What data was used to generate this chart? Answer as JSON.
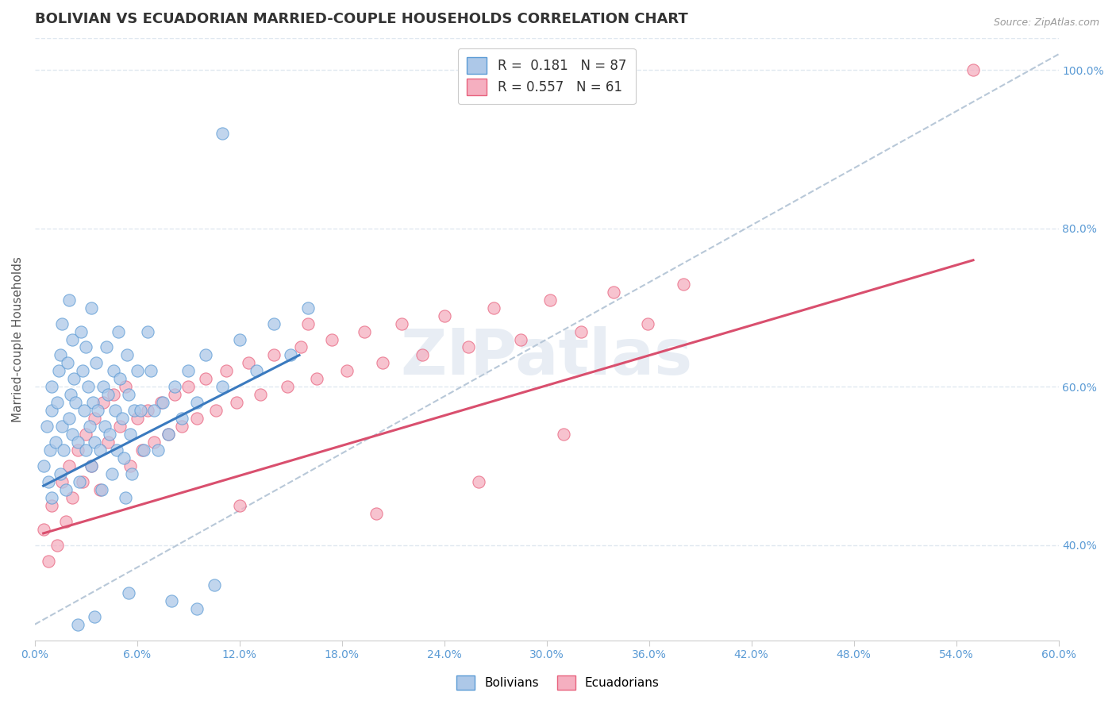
{
  "title": "BOLIVIAN VS ECUADORIAN MARRIED-COUPLE HOUSEHOLDS CORRELATION CHART",
  "source": "Source: ZipAtlas.com",
  "ylabel": "Married-couple Households",
  "xlim": [
    0.0,
    0.6
  ],
  "ylim": [
    0.28,
    1.04
  ],
  "xtick_vals": [
    0.0,
    0.06,
    0.12,
    0.18,
    0.24,
    0.3,
    0.36,
    0.42,
    0.48,
    0.54,
    0.6
  ],
  "yticks_right": [
    0.4,
    0.6,
    0.8,
    1.0
  ],
  "bolivian_R": 0.181,
  "bolivian_N": 87,
  "ecuadorian_R": 0.557,
  "ecuadorian_N": 61,
  "bolivian_fill": "#adc8e8",
  "ecuadorian_fill": "#f5afc0",
  "bolivian_edge": "#5b9bd5",
  "ecuadorian_edge": "#e8637e",
  "bolivian_line": "#3a7abf",
  "ecuadorian_line": "#d94f6e",
  "ref_line_color": "#b8c8d8",
  "watermark": "ZIPatlas",
  "background_color": "#ffffff",
  "grid_color": "#e0e8f0",
  "tick_label_color": "#5b9bd5",
  "bolivian_scatter_x": [
    0.005,
    0.007,
    0.008,
    0.009,
    0.01,
    0.01,
    0.01,
    0.012,
    0.013,
    0.014,
    0.015,
    0.015,
    0.016,
    0.016,
    0.017,
    0.018,
    0.019,
    0.02,
    0.02,
    0.021,
    0.022,
    0.022,
    0.023,
    0.024,
    0.025,
    0.026,
    0.027,
    0.028,
    0.029,
    0.03,
    0.03,
    0.031,
    0.032,
    0.033,
    0.033,
    0.034,
    0.035,
    0.036,
    0.037,
    0.038,
    0.039,
    0.04,
    0.041,
    0.042,
    0.043,
    0.044,
    0.045,
    0.046,
    0.047,
    0.048,
    0.049,
    0.05,
    0.051,
    0.052,
    0.053,
    0.054,
    0.055,
    0.056,
    0.057,
    0.058,
    0.06,
    0.062,
    0.064,
    0.066,
    0.068,
    0.07,
    0.072,
    0.075,
    0.078,
    0.082,
    0.086,
    0.09,
    0.095,
    0.1,
    0.11,
    0.12,
    0.13,
    0.14,
    0.15,
    0.16,
    0.11,
    0.08,
    0.095,
    0.105,
    0.055,
    0.035,
    0.025
  ],
  "bolivian_scatter_y": [
    0.5,
    0.55,
    0.48,
    0.52,
    0.46,
    0.57,
    0.6,
    0.53,
    0.58,
    0.62,
    0.49,
    0.64,
    0.55,
    0.68,
    0.52,
    0.47,
    0.63,
    0.56,
    0.71,
    0.59,
    0.54,
    0.66,
    0.61,
    0.58,
    0.53,
    0.48,
    0.67,
    0.62,
    0.57,
    0.52,
    0.65,
    0.6,
    0.55,
    0.5,
    0.7,
    0.58,
    0.53,
    0.63,
    0.57,
    0.52,
    0.47,
    0.6,
    0.55,
    0.65,
    0.59,
    0.54,
    0.49,
    0.62,
    0.57,
    0.52,
    0.67,
    0.61,
    0.56,
    0.51,
    0.46,
    0.64,
    0.59,
    0.54,
    0.49,
    0.57,
    0.62,
    0.57,
    0.52,
    0.67,
    0.62,
    0.57,
    0.52,
    0.58,
    0.54,
    0.6,
    0.56,
    0.62,
    0.58,
    0.64,
    0.6,
    0.66,
    0.62,
    0.68,
    0.64,
    0.7,
    0.92,
    0.33,
    0.32,
    0.35,
    0.34,
    0.31,
    0.3
  ],
  "ecuadorian_scatter_x": [
    0.005,
    0.008,
    0.01,
    0.013,
    0.016,
    0.018,
    0.02,
    0.022,
    0.025,
    0.028,
    0.03,
    0.033,
    0.035,
    0.038,
    0.04,
    0.043,
    0.046,
    0.05,
    0.053,
    0.056,
    0.06,
    0.063,
    0.066,
    0.07,
    0.074,
    0.078,
    0.082,
    0.086,
    0.09,
    0.095,
    0.1,
    0.106,
    0.112,
    0.118,
    0.125,
    0.132,
    0.14,
    0.148,
    0.156,
    0.165,
    0.174,
    0.183,
    0.193,
    0.204,
    0.215,
    0.227,
    0.24,
    0.254,
    0.269,
    0.285,
    0.302,
    0.32,
    0.339,
    0.359,
    0.38,
    0.31,
    0.26,
    0.2,
    0.16,
    0.12,
    0.55
  ],
  "ecuadorian_scatter_y": [
    0.42,
    0.38,
    0.45,
    0.4,
    0.48,
    0.43,
    0.5,
    0.46,
    0.52,
    0.48,
    0.54,
    0.5,
    0.56,
    0.47,
    0.58,
    0.53,
    0.59,
    0.55,
    0.6,
    0.5,
    0.56,
    0.52,
    0.57,
    0.53,
    0.58,
    0.54,
    0.59,
    0.55,
    0.6,
    0.56,
    0.61,
    0.57,
    0.62,
    0.58,
    0.63,
    0.59,
    0.64,
    0.6,
    0.65,
    0.61,
    0.66,
    0.62,
    0.67,
    0.63,
    0.68,
    0.64,
    0.69,
    0.65,
    0.7,
    0.66,
    0.71,
    0.67,
    0.72,
    0.68,
    0.73,
    0.54,
    0.48,
    0.44,
    0.68,
    0.45,
    1.0
  ],
  "bolivian_line_x": [
    0.005,
    0.155
  ],
  "bolivian_line_y": [
    0.475,
    0.64
  ],
  "ecuadorian_line_x": [
    0.005,
    0.55
  ],
  "ecuadorian_line_y": [
    0.415,
    0.76
  ],
  "ref_line_x": [
    0.0,
    0.6
  ],
  "ref_line_y": [
    0.3,
    1.02
  ]
}
